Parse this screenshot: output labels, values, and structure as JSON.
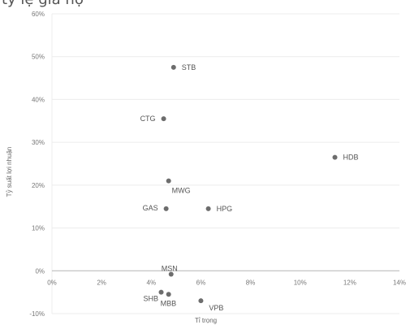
{
  "header": {
    "partial_text": "tỷ lệ giá nợ"
  },
  "chart_data": {
    "type": "scatter",
    "title": "",
    "xlabel": "Tỉ trọng",
    "ylabel": "Tỷ suất lợi nhuận",
    "xlim": [
      0,
      14
    ],
    "ylim": [
      -10,
      60
    ],
    "x_ticks": [
      "0%",
      "2%",
      "4%",
      "6%",
      "8%",
      "10%",
      "12%",
      "14%"
    ],
    "y_ticks": [
      "60%",
      "50%",
      "40%",
      "30%",
      "20%",
      "10%",
      "0%",
      "-10%"
    ],
    "grid": true,
    "points": [
      {
        "label": "STB",
        "x": 4.9,
        "y": 47.5
      },
      {
        "label": "CTG",
        "x": 4.5,
        "y": 35.5
      },
      {
        "label": "HDB",
        "x": 11.4,
        "y": 26.5
      },
      {
        "label": "MWG",
        "x": 4.7,
        "y": 21
      },
      {
        "label": "GAS",
        "x": 4.6,
        "y": 14.5
      },
      {
        "label": "HPG",
        "x": 6.3,
        "y": 14.5
      },
      {
        "label": "MSN",
        "x": 4.8,
        "y": -0.8
      },
      {
        "label": "SHB",
        "x": 4.4,
        "y": -5
      },
      {
        "label": "MBB",
        "x": 4.7,
        "y": -5.5
      },
      {
        "label": "VPB",
        "x": 6.0,
        "y": -7
      }
    ],
    "colors": {
      "point": "#6d6d6d",
      "grid": "#ececec",
      "zero_line": "#b5b5b5"
    }
  }
}
